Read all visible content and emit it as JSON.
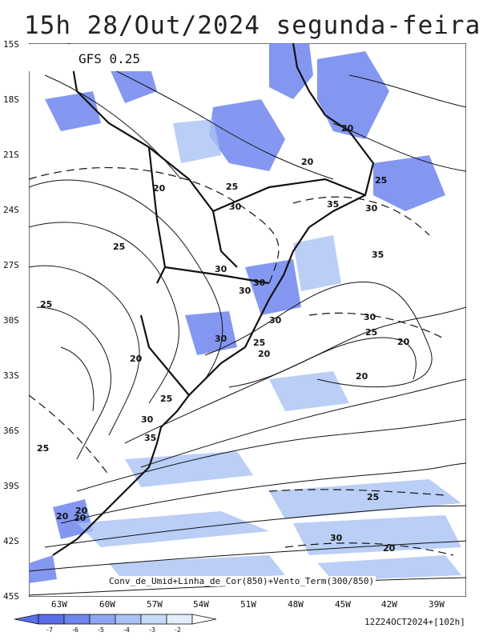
{
  "title": "15h 28/Out/2024 segunda-feira",
  "model": "GFS 0.25",
  "caption": "Conv_de_Umid+Linha_de_Cor(850)+Vento_Term(300/850)",
  "run_stamp": "12Z24OCT2024+[102h]",
  "lat_labels": [
    "15S",
    "18S",
    "21S",
    "24S",
    "27S",
    "30S",
    "33S",
    "36S",
    "39S",
    "42S",
    "45S"
  ],
  "lon_labels": [
    "63W",
    "60W",
    "57W",
    "54W",
    "51W",
    "48W",
    "45W",
    "42W",
    "39W"
  ],
  "colorbar": {
    "ticks": [
      "-7",
      "-6",
      "-5",
      "-4",
      "-3",
      "-2"
    ],
    "colors": [
      "#5a6ee8",
      "#6f86ee",
      "#8ea6f2",
      "#a9c2f4",
      "#c6dbf8",
      "#e2eefb"
    ]
  },
  "contour_labels": [
    "20",
    "20",
    "25",
    "30",
    "25",
    "20",
    "35",
    "30",
    "25",
    "30",
    "30",
    "30",
    "30",
    "25",
    "30",
    "25",
    "20",
    "20",
    "35",
    "30",
    "25",
    "20",
    "20",
    "25",
    "30",
    "35",
    "25",
    "20",
    "20",
    "20",
    "25",
    "30",
    "20"
  ],
  "colors": {
    "convergence_dark": "#5a6ee8",
    "convergence_light": "#a9c2f4",
    "lines": "#111111"
  }
}
